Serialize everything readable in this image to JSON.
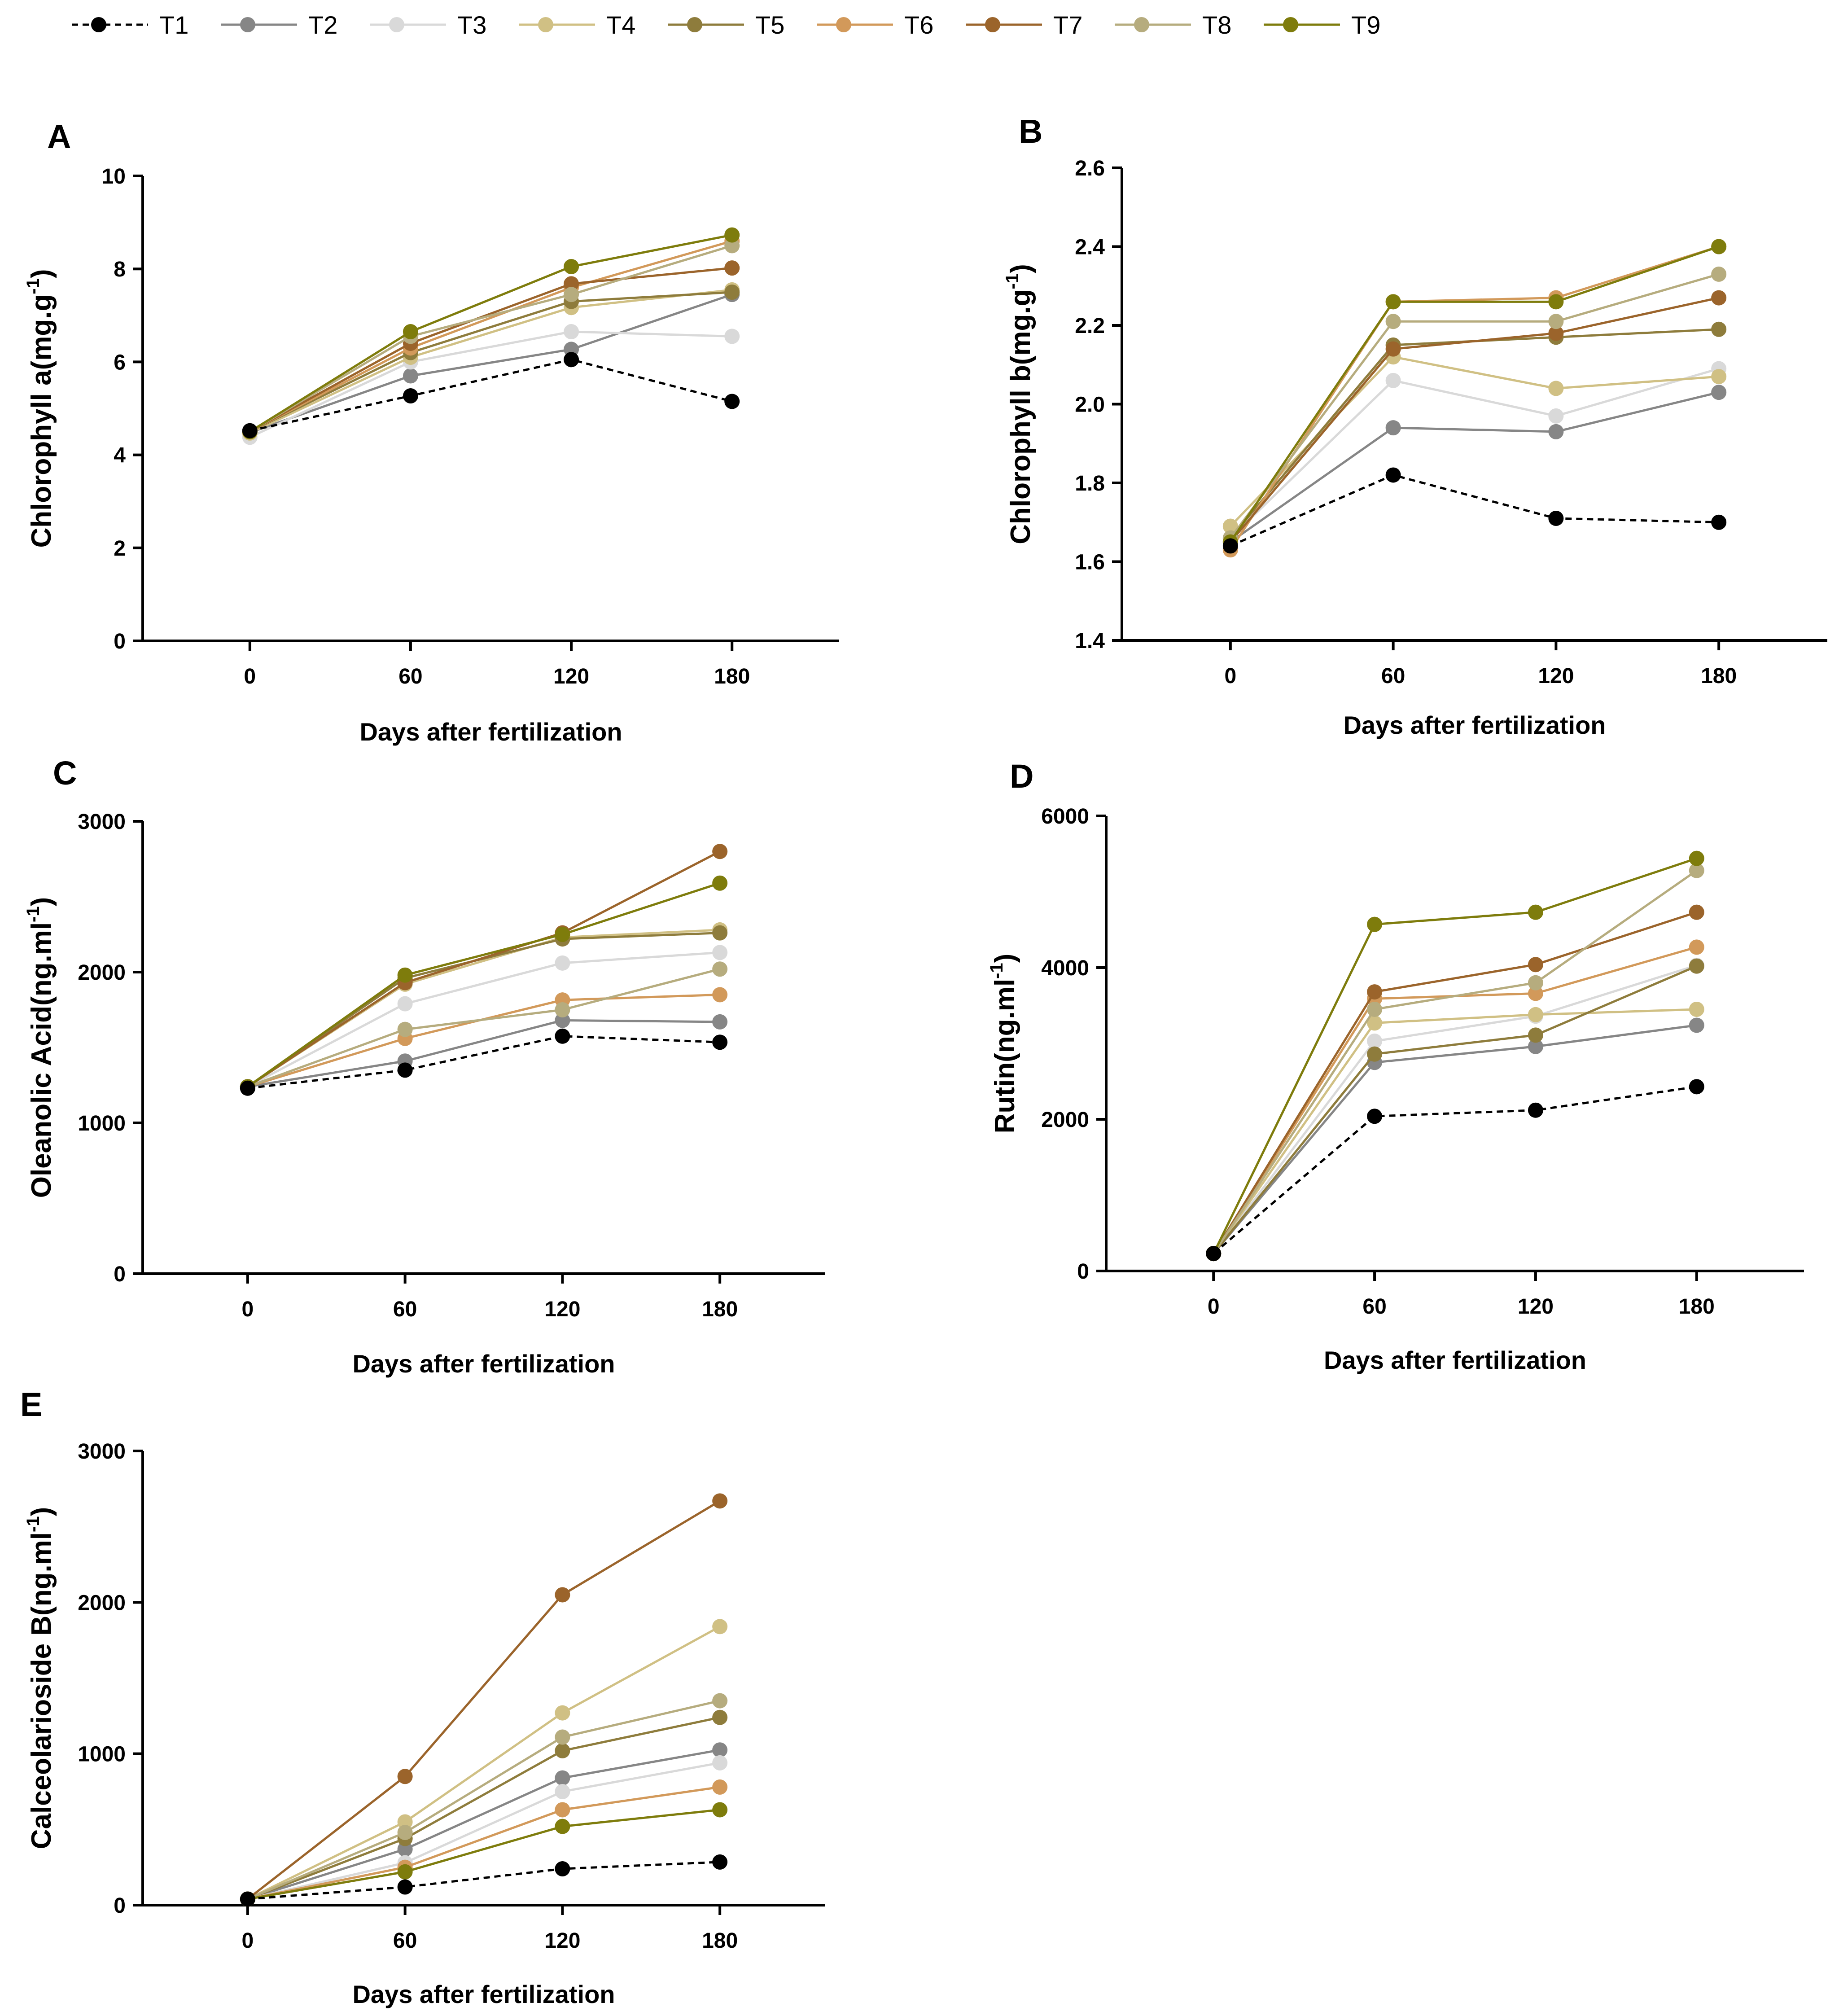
{
  "legend": [
    {
      "name": "T1",
      "color": "#000000",
      "dashed": true
    },
    {
      "name": "T2",
      "color": "#868686",
      "dashed": false
    },
    {
      "name": "T3",
      "color": "#d9d9d9",
      "dashed": false
    },
    {
      "name": "T4",
      "color": "#d0c084",
      "dashed": false
    },
    {
      "name": "T5",
      "color": "#8e7c3c",
      "dashed": false
    },
    {
      "name": "T6",
      "color": "#d2995a",
      "dashed": false
    },
    {
      "name": "T7",
      "color": "#9b642b",
      "dashed": false
    },
    {
      "name": "T8",
      "color": "#b6ac7e",
      "dashed": false
    },
    {
      "name": "T9",
      "color": "#7e7c0c",
      "dashed": false
    }
  ],
  "chart_data": [
    {
      "panel": "A",
      "type": "line",
      "xlabel": "Days after fertilization",
      "ylabel_main": "Chlorophyll a(mg.g",
      "ylabel_sup": "-1",
      "ylabel_tail": ")",
      "x": [
        0,
        60,
        120,
        180
      ],
      "xlim": [
        -40,
        220
      ],
      "ylim": [
        0,
        10
      ],
      "yticks": [
        0,
        2,
        4,
        6,
        8,
        10
      ],
      "series": [
        {
          "name": "T1",
          "values": [
            4.52,
            5.27,
            6.05,
            5.15
          ]
        },
        {
          "name": "T2",
          "values": [
            4.48,
            5.7,
            6.27,
            7.45
          ]
        },
        {
          "name": "T3",
          "values": [
            4.38,
            6.0,
            6.65,
            6.55
          ]
        },
        {
          "name": "T4",
          "values": [
            4.47,
            6.1,
            7.17,
            7.55
          ]
        },
        {
          "name": "T5",
          "values": [
            4.5,
            6.2,
            7.3,
            7.5
          ]
        },
        {
          "name": "T6",
          "values": [
            4.5,
            6.3,
            7.6,
            8.6
          ]
        },
        {
          "name": "T7",
          "values": [
            4.5,
            6.4,
            7.68,
            8.02
          ]
        },
        {
          "name": "T8",
          "values": [
            4.5,
            6.55,
            7.45,
            8.5
          ]
        },
        {
          "name": "T9",
          "values": [
            4.5,
            6.65,
            8.05,
            8.73
          ]
        }
      ]
    },
    {
      "panel": "B",
      "type": "line",
      "xlabel": "Days after fertilization",
      "ylabel_main": "Chlorophyll b(mg.g",
      "ylabel_sup": "-1",
      "ylabel_tail": ")",
      "x": [
        0,
        60,
        120,
        180
      ],
      "xlim": [
        -40,
        220
      ],
      "ylim": [
        1.4,
        2.6
      ],
      "yticks": [
        1.4,
        1.6,
        1.8,
        2.0,
        2.2,
        2.4,
        2.6
      ],
      "series": [
        {
          "name": "T1",
          "values": [
            1.64,
            1.82,
            1.71,
            1.7
          ]
        },
        {
          "name": "T2",
          "values": [
            1.65,
            1.94,
            1.93,
            2.03
          ]
        },
        {
          "name": "T3",
          "values": [
            1.66,
            2.06,
            1.97,
            2.09
          ]
        },
        {
          "name": "T4",
          "values": [
            1.69,
            2.12,
            2.04,
            2.07
          ]
        },
        {
          "name": "T5",
          "values": [
            1.66,
            2.15,
            2.17,
            2.19
          ]
        },
        {
          "name": "T6",
          "values": [
            1.63,
            2.26,
            2.27,
            2.4
          ]
        },
        {
          "name": "T7",
          "values": [
            1.65,
            2.14,
            2.18,
            2.27
          ]
        },
        {
          "name": "T8",
          "values": [
            1.66,
            2.21,
            2.21,
            2.33
          ]
        },
        {
          "name": "T9",
          "values": [
            1.65,
            2.26,
            2.26,
            2.4
          ]
        }
      ]
    },
    {
      "panel": "C",
      "type": "line",
      "xlabel": "Days after fertilization",
      "ylabel_main": "Oleanolic Acid(ng.ml",
      "ylabel_sup": "-1",
      "ylabel_tail": ")",
      "x": [
        0,
        60,
        120,
        180
      ],
      "xlim": [
        -40,
        220
      ],
      "ylim": [
        0,
        3000
      ],
      "yticks": [
        0,
        1000,
        2000,
        3000
      ],
      "series": [
        {
          "name": "T1",
          "values": [
            1230,
            1350,
            1575,
            1535
          ]
        },
        {
          "name": "T2",
          "values": [
            1240,
            1410,
            1680,
            1670
          ]
        },
        {
          "name": "T3",
          "values": [
            1240,
            1790,
            2060,
            2130
          ]
        },
        {
          "name": "T4",
          "values": [
            1240,
            1920,
            2230,
            2280
          ]
        },
        {
          "name": "T5",
          "values": [
            1240,
            1960,
            2220,
            2260
          ]
        },
        {
          "name": "T6",
          "values": [
            1240,
            1560,
            1815,
            1850
          ]
        },
        {
          "name": "T7",
          "values": [
            1240,
            1930,
            2260,
            2800
          ]
        },
        {
          "name": "T8",
          "values": [
            1240,
            1620,
            1750,
            2020
          ]
        },
        {
          "name": "T9",
          "values": [
            1240,
            1980,
            2250,
            2590
          ]
        }
      ]
    },
    {
      "panel": "D",
      "type": "line",
      "xlabel": "Days after fertilization",
      "ylabel_main": "Rutin(ng.ml",
      "ylabel_sup": "-1",
      "ylabel_tail": ")",
      "x": [
        0,
        60,
        120,
        180
      ],
      "xlim": [
        -40,
        220
      ],
      "ylim": [
        0,
        6000
      ],
      "yticks": [
        0,
        2000,
        4000,
        6000
      ],
      "series": [
        {
          "name": "T1",
          "values": [
            230,
            2040,
            2120,
            2430
          ]
        },
        {
          "name": "T2",
          "values": [
            230,
            2750,
            2960,
            3240
          ]
        },
        {
          "name": "T3",
          "values": [
            230,
            3030,
            3360,
            4030
          ]
        },
        {
          "name": "T4",
          "values": [
            230,
            3270,
            3380,
            3450
          ]
        },
        {
          "name": "T5",
          "values": [
            230,
            2860,
            3110,
            4020
          ]
        },
        {
          "name": "T6",
          "values": [
            230,
            3590,
            3660,
            4270
          ]
        },
        {
          "name": "T7",
          "values": [
            230,
            3680,
            4040,
            4730
          ]
        },
        {
          "name": "T8",
          "values": [
            230,
            3450,
            3800,
            5280
          ]
        },
        {
          "name": "T9",
          "values": [
            230,
            4570,
            4730,
            5440
          ]
        }
      ]
    },
    {
      "panel": "E",
      "type": "line",
      "xlabel": "Days after fertilization",
      "ylabel_main": "Calceolarioside B(ng.ml",
      "ylabel_sup": "-1",
      "ylabel_tail": ")",
      "x": [
        0,
        60,
        120,
        180
      ],
      "xlim": [
        -40,
        220
      ],
      "ylim": [
        0,
        3000
      ],
      "yticks": [
        0,
        1000,
        2000,
        3000
      ],
      "series": [
        {
          "name": "T1",
          "values": [
            40,
            120,
            240,
            285
          ]
        },
        {
          "name": "T2",
          "values": [
            40,
            370,
            840,
            1025
          ]
        },
        {
          "name": "T3",
          "values": [
            40,
            280,
            750,
            940
          ]
        },
        {
          "name": "T4",
          "values": [
            40,
            550,
            1270,
            1840
          ]
        },
        {
          "name": "T5",
          "values": [
            40,
            440,
            1020,
            1240
          ]
        },
        {
          "name": "T6",
          "values": [
            40,
            250,
            630,
            780
          ]
        },
        {
          "name": "T7",
          "values": [
            40,
            850,
            2050,
            2670
          ]
        },
        {
          "name": "T8",
          "values": [
            40,
            480,
            1110,
            1350
          ]
        },
        {
          "name": "T9",
          "values": [
            40,
            220,
            520,
            630
          ]
        }
      ]
    }
  ]
}
